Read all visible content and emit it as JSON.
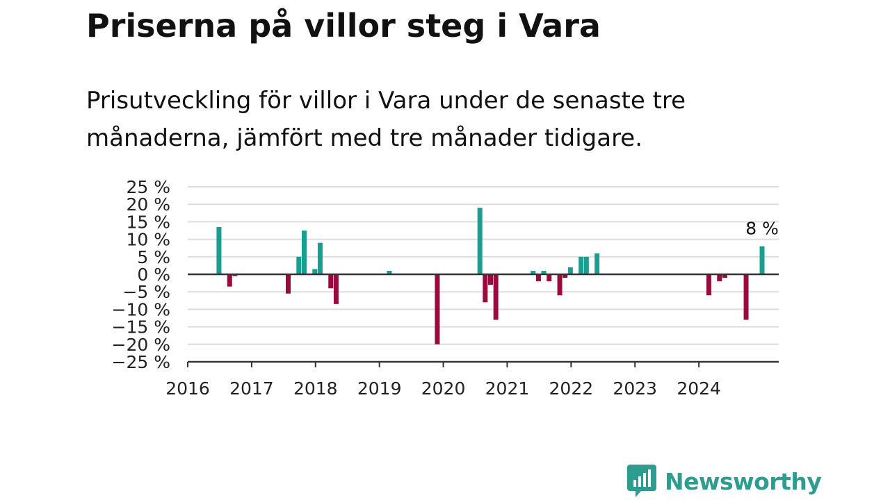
{
  "title": "Priserna på villor steg i Vara",
  "subtitle": "Prisutveckling för villor i Vara under de senaste tre månaderna, jämfört med tre månader tidigare.",
  "brand": {
    "name": "Newsworthy",
    "color": "#2e9c8f",
    "icon": "newsworthy-logo-icon"
  },
  "chart_data": {
    "type": "bar",
    "ylim": [
      -25,
      25
    ],
    "y_ticks": [
      25,
      20,
      15,
      10,
      5,
      0,
      -5,
      -10,
      -15,
      -20,
      -25
    ],
    "y_tick_labels": [
      "25 %",
      "20 %",
      "15 %",
      "10 %",
      "5 %",
      "0 %",
      "−5 %",
      "−10 %",
      "−15 %",
      "−20 %",
      "−25 %"
    ],
    "x_ticks": [
      "2016",
      "2017",
      "2018",
      "2019",
      "2020",
      "2021",
      "2022",
      "2023",
      "2024"
    ],
    "x_range": [
      "2016-01",
      "2025-04"
    ],
    "grid": true,
    "colors": {
      "positive": "#1a9e92",
      "negative": "#9b0a3e",
      "grid": "#dddddd",
      "axis": "#333333"
    },
    "last_value_label": "8 %",
    "points": [
      {
        "date": "2016-07",
        "value": 13.5
      },
      {
        "date": "2016-09",
        "value": -3.5
      },
      {
        "date": "2016-10",
        "value": -0.5
      },
      {
        "date": "2017-08",
        "value": -5.5
      },
      {
        "date": "2017-10",
        "value": 5
      },
      {
        "date": "2017-11",
        "value": 12.5
      },
      {
        "date": "2018-01",
        "value": 1.5
      },
      {
        "date": "2018-02",
        "value": 9
      },
      {
        "date": "2018-04",
        "value": -4
      },
      {
        "date": "2018-05",
        "value": -8.5
      },
      {
        "date": "2019-03",
        "value": 1
      },
      {
        "date": "2019-12",
        "value": -20
      },
      {
        "date": "2020-08",
        "value": 19
      },
      {
        "date": "2020-09",
        "value": -8
      },
      {
        "date": "2020-10",
        "value": -3
      },
      {
        "date": "2020-11",
        "value": -13
      },
      {
        "date": "2021-06",
        "value": 1
      },
      {
        "date": "2021-07",
        "value": -2
      },
      {
        "date": "2021-08",
        "value": 1
      },
      {
        "date": "2021-09",
        "value": -2
      },
      {
        "date": "2021-11",
        "value": -6
      },
      {
        "date": "2021-12",
        "value": -1
      },
      {
        "date": "2022-01",
        "value": 2
      },
      {
        "date": "2022-03",
        "value": 5
      },
      {
        "date": "2022-04",
        "value": 5
      },
      {
        "date": "2022-06",
        "value": 6
      },
      {
        "date": "2024-03",
        "value": -6
      },
      {
        "date": "2024-05",
        "value": -2
      },
      {
        "date": "2024-06",
        "value": -1
      },
      {
        "date": "2024-10",
        "value": -13
      },
      {
        "date": "2025-01",
        "value": 8
      }
    ]
  }
}
